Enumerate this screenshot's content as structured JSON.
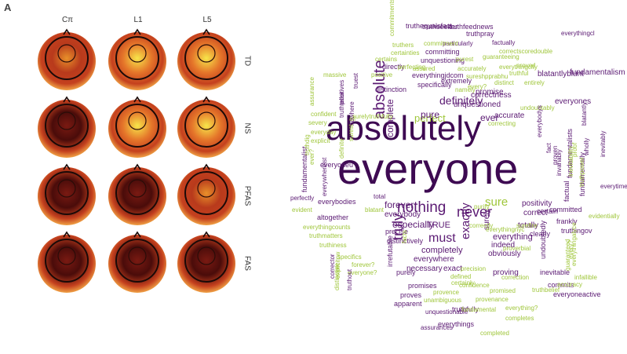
{
  "figure_label": "A",
  "topomaps": {
    "columns": [
      "Cπ",
      "L1",
      "L5"
    ],
    "rows": [
      "TD",
      "NS",
      "PFAS",
      "FAS"
    ],
    "intensity": [
      [
        0.55,
        0.75,
        0.85
      ],
      [
        0.35,
        0.8,
        0.7
      ],
      [
        0.35,
        0.4,
        0.6
      ],
      [
        0.35,
        0.35,
        0.35
      ]
    ]
  },
  "wordcloud": {
    "colors": {
      "dark": "#3e0a52",
      "purple": "#5b1a73",
      "green": "#9fc63a",
      "lightgreen": "#b5d35b"
    },
    "words": [
      {
        "t": "everyone",
        "c": "dark"
      },
      {
        "t": "absolutely",
        "c": "dark"
      },
      {
        "t": "nothing",
        "c": "purple"
      },
      {
        "t": "absolute",
        "c": "purple"
      },
      {
        "t": "never",
        "c": "purple"
      },
      {
        "t": "definitely",
        "c": "purple"
      },
      {
        "t": "truly",
        "c": "purple"
      },
      {
        "t": "exactly",
        "c": "purple"
      },
      {
        "t": "must",
        "c": "purple"
      },
      {
        "t": "sure",
        "c": "green"
      },
      {
        "t": "forever",
        "c": "purple"
      },
      {
        "t": "perfect",
        "c": "green"
      },
      {
        "t": "ever",
        "c": "purple"
      },
      {
        "t": "pure",
        "c": "purple"
      },
      {
        "t": "complete",
        "c": "purple"
      },
      {
        "t": "correctness",
        "c": "purple"
      },
      {
        "t": "especially",
        "c": "purple"
      },
      {
        "t": "TRUE",
        "c": "purple"
      },
      {
        "t": "everybody",
        "c": "purple"
      },
      {
        "t": "completely",
        "c": "purple"
      },
      {
        "t": "everywhere",
        "c": "purple"
      },
      {
        "t": "necessary",
        "c": "purple"
      },
      {
        "t": "exact",
        "c": "purple"
      },
      {
        "t": "everything",
        "c": "purple"
      },
      {
        "t": "indeed",
        "c": "purple"
      },
      {
        "t": "obviously",
        "c": "purple"
      },
      {
        "t": "proving",
        "c": "purple"
      },
      {
        "t": "surely",
        "c": "purple"
      },
      {
        "t": "correct",
        "c": "purple"
      },
      {
        "t": "positivity",
        "c": "purple"
      },
      {
        "t": "certain",
        "c": "purple"
      },
      {
        "t": "committed",
        "c": "purple"
      },
      {
        "t": "totally",
        "c": "purple"
      },
      {
        "t": "frankly",
        "c": "purple"
      },
      {
        "t": "truthingov",
        "c": "purple"
      },
      {
        "t": "clearly",
        "c": "purple"
      },
      {
        "t": "undoubtedly",
        "c": "purple"
      },
      {
        "t": "inevitable",
        "c": "purple"
      },
      {
        "t": "commits",
        "c": "purple"
      },
      {
        "t": "everyoneactive",
        "c": "purple"
      },
      {
        "t": "unquestioned",
        "c": "purple"
      },
      {
        "t": "promise",
        "c": "purple"
      },
      {
        "t": "accurate",
        "c": "purple"
      },
      {
        "t": "everyones",
        "c": "purple"
      },
      {
        "t": "fundamentalism",
        "c": "purple"
      },
      {
        "t": "blatantlyblunt",
        "c": "purple"
      },
      {
        "t": "fundamentalists",
        "c": "purple"
      },
      {
        "t": "factual",
        "c": "purple"
      },
      {
        "t": "fundamentally",
        "c": "purple"
      },
      {
        "t": "everyoneu",
        "c": "purple"
      },
      {
        "t": "everywhereist",
        "c": "purple"
      },
      {
        "t": "everybodies",
        "c": "purple"
      },
      {
        "t": "fundamentalist",
        "c": "purple"
      },
      {
        "t": "altogether",
        "c": "purple"
      },
      {
        "t": "perfectly",
        "c": "purple"
      },
      {
        "t": "precise",
        "c": "purple"
      },
      {
        "t": "distinctively",
        "c": "purple"
      },
      {
        "t": "purely",
        "c": "purple"
      },
      {
        "t": "promises",
        "c": "purple"
      },
      {
        "t": "proves",
        "c": "purple"
      },
      {
        "t": "apparent",
        "c": "purple"
      },
      {
        "t": "irrefutable",
        "c": "purple"
      },
      {
        "t": "truthfully",
        "c": "purple"
      },
      {
        "t": "everythings",
        "c": "purple"
      },
      {
        "t": "assurances",
        "c": "purple"
      },
      {
        "t": "unquestionable",
        "c": "purple"
      },
      {
        "t": "truthequalsfact",
        "c": "purple"
      },
      {
        "t": "truthfeednews",
        "c": "purple"
      },
      {
        "t": "truthpray",
        "c": "purple"
      },
      {
        "t": "committing",
        "c": "purple"
      },
      {
        "t": "unquestioning",
        "c": "purple"
      },
      {
        "t": "everythingjdcom",
        "c": "purple"
      },
      {
        "t": "specifically",
        "c": "purple"
      },
      {
        "t": "distinction",
        "c": "purple"
      },
      {
        "t": "extremely",
        "c": "purple"
      },
      {
        "t": "directly",
        "c": "purple"
      },
      {
        "t": "truthseeker",
        "c": "purple"
      },
      {
        "t": "particularly",
        "c": "purple"
      },
      {
        "t": "factually",
        "c": "purple"
      },
      {
        "t": "correctscoredouble",
        "c": "green"
      },
      {
        "t": "guaranteeing",
        "c": "green"
      },
      {
        "t": "truthers",
        "c": "green"
      },
      {
        "t": "certainties",
        "c": "green"
      },
      {
        "t": "commitments",
        "c": "green"
      },
      {
        "t": "commitment",
        "c": "green"
      },
      {
        "t": "certains",
        "c": "green"
      },
      {
        "t": "perfecting",
        "c": "green"
      },
      {
        "t": "purest",
        "c": "green"
      },
      {
        "t": "proved",
        "c": "green"
      },
      {
        "t": "positive",
        "c": "green"
      },
      {
        "t": "assured",
        "c": "green"
      },
      {
        "t": "accurately",
        "c": "green"
      },
      {
        "t": "sureshpprabhu",
        "c": "green"
      },
      {
        "t": "everythingcity",
        "c": "green"
      },
      {
        "t": "truthful",
        "c": "green"
      },
      {
        "t": "distinct",
        "c": "green"
      },
      {
        "t": "entirely",
        "c": "green"
      },
      {
        "t": "every?",
        "c": "green"
      },
      {
        "t": "namely",
        "c": "green"
      },
      {
        "t": "correcting",
        "c": "green"
      },
      {
        "t": "undoubtably",
        "c": "green"
      },
      {
        "t": "confident",
        "c": "green"
      },
      {
        "t": "severy",
        "c": "green"
      },
      {
        "t": "everyday",
        "c": "green"
      },
      {
        "t": "explicit",
        "c": "green"
      },
      {
        "t": "assurance",
        "c": "green"
      },
      {
        "t": "ever?",
        "c": "green"
      },
      {
        "t": "truthdig",
        "c": "green"
      },
      {
        "t": "evident",
        "c": "green"
      },
      {
        "t": "everythingcounts",
        "c": "green"
      },
      {
        "t": "truthmatters",
        "c": "green"
      },
      {
        "t": "truthiness",
        "c": "green"
      },
      {
        "t": "specifics",
        "c": "green"
      },
      {
        "t": "forever?",
        "c": "green"
      },
      {
        "t": "everyone?",
        "c": "green"
      },
      {
        "t": "corrector",
        "c": "purple"
      },
      {
        "t": "explicitcw",
        "c": "green"
      },
      {
        "t": "precision",
        "c": "green"
      },
      {
        "t": "defined",
        "c": "green"
      },
      {
        "t": "provence",
        "c": "green"
      },
      {
        "t": "unambiguous",
        "c": "green"
      },
      {
        "t": "provenance",
        "c": "green"
      },
      {
        "t": "everything?",
        "c": "green"
      },
      {
        "t": "confidence",
        "c": "green"
      },
      {
        "t": "promised",
        "c": "green"
      },
      {
        "t": "fundamental",
        "c": "green"
      },
      {
        "t": "completed",
        "c": "green"
      },
      {
        "t": "completes",
        "c": "green"
      },
      {
        "t": "infallible",
        "c": "green"
      },
      {
        "t": "guaranteed",
        "c": "green"
      },
      {
        "t": "every?",
        "c": "green"
      },
      {
        "t": "everythingalyce",
        "c": "green"
      },
      {
        "t": "truthpower",
        "c": "green"
      },
      {
        "t": "evidentially",
        "c": "green"
      },
      {
        "t": "inevitably",
        "c": "purple"
      },
      {
        "t": "inevitability",
        "c": "green"
      },
      {
        "t": "truthteller",
        "c": "purple"
      },
      {
        "t": "correctly",
        "c": "green"
      },
      {
        "t": "surefire",
        "c": "green"
      },
      {
        "t": "everythingnyc",
        "c": "green"
      },
      {
        "t": "correction",
        "c": "green"
      },
      {
        "t": "certainly",
        "c": "green"
      },
      {
        "t": "facts",
        "c": "green"
      },
      {
        "t": "total",
        "c": "purple"
      },
      {
        "t": "all",
        "c": "green"
      },
      {
        "t": "blatant",
        "c": "green"
      },
      {
        "t": "definite",
        "c": "green"
      },
      {
        "t": "nowhere",
        "c": "purple"
      },
      {
        "t": "positives",
        "c": "purple"
      },
      {
        "t": "truest",
        "c": "purple"
      },
      {
        "t": "surest",
        "c": "green"
      },
      {
        "t": "invariably",
        "c": "purple"
      },
      {
        "t": "fact",
        "c": "purple"
      },
      {
        "t": "proven",
        "c": "purple"
      },
      {
        "t": "everybodys",
        "c": "purple"
      },
      {
        "t": "accuracy",
        "c": "green"
      },
      {
        "t": "proof",
        "c": "green"
      },
      {
        "t": "wholly",
        "c": "purple"
      },
      {
        "t": "everytime",
        "c": "purple"
      },
      {
        "t": "blatantly",
        "c": "purple"
      },
      {
        "t": "truthout",
        "c": "purple"
      },
      {
        "t": "distinctive",
        "c": "green"
      },
      {
        "t": "purity",
        "c": "green"
      },
      {
        "t": "proverbial",
        "c": "green"
      },
      {
        "t": "truthbelief",
        "c": "green"
      },
      {
        "t": "everythingcl",
        "c": "purple"
      },
      {
        "t": "massive",
        "c": "green"
      },
      {
        "t": "surelytruthfully",
        "c": "green"
      }
    ]
  }
}
